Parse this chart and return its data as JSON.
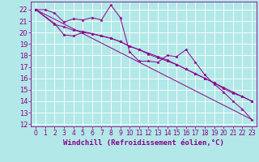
{
  "xlabel": "Windchill (Refroidissement éolien,°C)",
  "bg_color": "#b2e8e8",
  "grid_color": "#ffffff",
  "line_color": "#8B008B",
  "xlim": [
    -0.5,
    23.5
  ],
  "ylim": [
    11.8,
    22.7
  ],
  "yticks": [
    12,
    13,
    14,
    15,
    16,
    17,
    18,
    19,
    20,
    21,
    22
  ],
  "xticks": [
    0,
    1,
    2,
    3,
    4,
    5,
    6,
    7,
    8,
    9,
    10,
    11,
    12,
    13,
    14,
    15,
    16,
    17,
    18,
    19,
    20,
    21,
    22,
    23
  ],
  "series1_x": [
    0,
    1,
    2,
    3,
    4,
    5,
    6,
    7,
    8,
    9,
    10,
    11,
    12,
    13,
    14,
    15,
    16,
    17,
    18,
    19,
    20,
    21,
    22,
    23
  ],
  "series1_y": [
    22.0,
    22.0,
    21.7,
    20.9,
    21.2,
    21.1,
    21.3,
    21.1,
    22.4,
    21.3,
    18.3,
    17.5,
    17.5,
    17.4,
    18.0,
    17.9,
    18.5,
    17.4,
    16.3,
    15.5,
    14.8,
    14.0,
    13.3,
    12.4
  ],
  "series2_x": [
    0,
    2,
    3,
    4,
    5,
    6,
    7,
    8,
    9,
    10,
    11,
    12,
    13,
    14,
    15,
    16,
    17,
    18,
    19,
    20,
    21,
    22,
    23
  ],
  "series2_y": [
    22.0,
    20.7,
    20.5,
    20.2,
    20.1,
    19.9,
    19.7,
    19.5,
    19.2,
    18.8,
    18.5,
    18.2,
    17.9,
    17.6,
    17.2,
    16.8,
    16.4,
    16.0,
    15.6,
    15.2,
    14.8,
    14.4,
    14.0
  ],
  "series3_x": [
    0,
    23
  ],
  "series3_y": [
    22.0,
    12.4
  ],
  "series4_x": [
    0,
    2,
    3,
    4,
    5,
    6,
    7,
    8,
    9,
    10,
    11,
    12,
    13,
    14,
    15,
    16,
    17,
    18,
    19,
    20,
    21,
    22,
    23
  ],
  "series4_y": [
    22.0,
    20.8,
    19.8,
    19.7,
    20.0,
    19.9,
    19.7,
    19.5,
    19.2,
    18.8,
    18.5,
    18.1,
    17.8,
    17.5,
    17.2,
    16.8,
    16.4,
    16.0,
    15.6,
    15.1,
    14.7,
    14.4,
    14.0
  ],
  "xlabel_fontsize": 6.5,
  "tick_fontsize": 6.0,
  "marker_size": 2.5,
  "lw": 0.7
}
